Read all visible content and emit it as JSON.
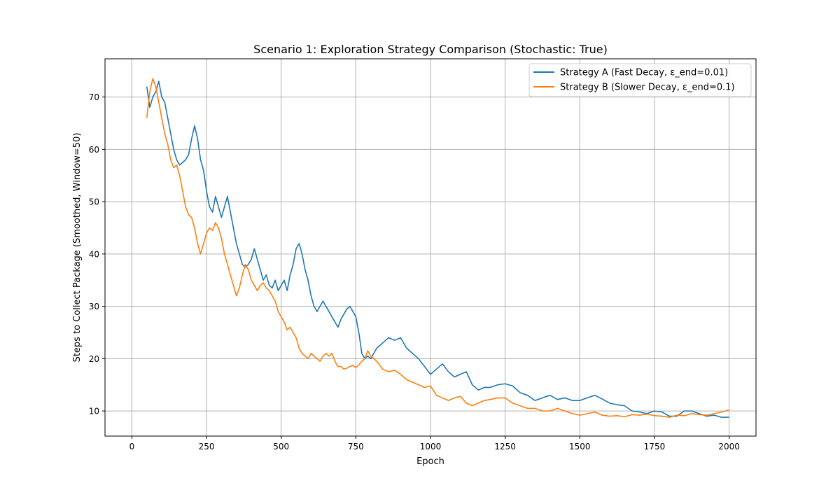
{
  "chart_data": {
    "type": "line",
    "title": "Scenario 1: Exploration Strategy Comparison (Stochastic: True)",
    "xlabel": "Epoch",
    "ylabel": "Steps to Collect Package (Smoothed, Window=50)",
    "xlim": [
      -90,
      2090
    ],
    "ylim": [
      5.2,
      77.3
    ],
    "x_ticks": [
      0,
      250,
      500,
      750,
      1000,
      1250,
      1500,
      1750,
      2000
    ],
    "y_ticks": [
      10,
      20,
      30,
      40,
      50,
      60,
      70
    ],
    "grid": true,
    "legend_position": "top-right",
    "series": [
      {
        "name": "Strategy A (Fast Decay, ε_end=0.01)",
        "color": "#1f77b4",
        "x": [
          50,
          60,
          70,
          80,
          90,
          100,
          110,
          120,
          130,
          140,
          150,
          160,
          170,
          180,
          190,
          200,
          210,
          220,
          230,
          240,
          250,
          260,
          270,
          280,
          290,
          300,
          310,
          320,
          330,
          340,
          350,
          360,
          370,
          380,
          390,
          400,
          410,
          420,
          430,
          440,
          450,
          460,
          470,
          480,
          490,
          500,
          510,
          520,
          530,
          540,
          550,
          560,
          570,
          580,
          590,
          600,
          610,
          620,
          630,
          640,
          650,
          660,
          670,
          680,
          690,
          700,
          710,
          720,
          730,
          740,
          750,
          760,
          770,
          780,
          790,
          800,
          820,
          840,
          860,
          880,
          900,
          920,
          940,
          960,
          980,
          1000,
          1020,
          1040,
          1060,
          1080,
          1100,
          1120,
          1140,
          1160,
          1180,
          1200,
          1225,
          1250,
          1275,
          1300,
          1325,
          1350,
          1375,
          1400,
          1425,
          1450,
          1475,
          1500,
          1525,
          1550,
          1575,
          1600,
          1625,
          1650,
          1675,
          1700,
          1725,
          1750,
          1775,
          1800,
          1825,
          1850,
          1875,
          1900,
          1925,
          1950,
          1975,
          2000
        ],
        "y": [
          72,
          68,
          70,
          71,
          73,
          70,
          69,
          66,
          63,
          60,
          58,
          57,
          57.5,
          58,
          59,
          62,
          64.5,
          62,
          58,
          56,
          52,
          49,
          48,
          51,
          49,
          47,
          49,
          51,
          48,
          45,
          42,
          40,
          38,
          37.5,
          38,
          39,
          41,
          39,
          37,
          35,
          36,
          34,
          33.5,
          35,
          33,
          34,
          35,
          33,
          36,
          38,
          41,
          42,
          40,
          37,
          35,
          32,
          30,
          29,
          30,
          31,
          30,
          29,
          28,
          27,
          26,
          27.5,
          28.5,
          29.5,
          30,
          29,
          28,
          25,
          21,
          20,
          20.5,
          20,
          22,
          23,
          24,
          23.5,
          24,
          22,
          21,
          20,
          18.5,
          17,
          18,
          19,
          17.5,
          16.5,
          17,
          17.5,
          15,
          14,
          14.5,
          14.5,
          15,
          15.2,
          14.8,
          13.5,
          13,
          12,
          12.5,
          13,
          12.2,
          12.5,
          12,
          12,
          12.5,
          13,
          12.3,
          11.5,
          11.2,
          11,
          10,
          9.8,
          9.5,
          10,
          9.8,
          9,
          9,
          10,
          10,
          9.5,
          9,
          9.2,
          8.8,
          8.8
        ]
      },
      {
        "name": "Strategy B (Slower Decay, ε_end=0.1)",
        "color": "#ff7f0e",
        "x": [
          50,
          60,
          70,
          80,
          90,
          100,
          110,
          120,
          130,
          140,
          150,
          160,
          170,
          180,
          190,
          200,
          210,
          220,
          230,
          240,
          250,
          260,
          270,
          280,
          290,
          300,
          310,
          320,
          330,
          340,
          350,
          360,
          370,
          380,
          390,
          400,
          410,
          420,
          430,
          440,
          450,
          460,
          470,
          480,
          490,
          500,
          510,
          520,
          530,
          540,
          550,
          560,
          570,
          580,
          590,
          600,
          610,
          620,
          630,
          640,
          650,
          660,
          670,
          680,
          690,
          700,
          710,
          720,
          730,
          740,
          750,
          760,
          770,
          780,
          790,
          800,
          820,
          840,
          860,
          880,
          900,
          920,
          940,
          960,
          980,
          1000,
          1020,
          1040,
          1060,
          1080,
          1100,
          1120,
          1140,
          1160,
          1180,
          1200,
          1225,
          1250,
          1275,
          1300,
          1325,
          1350,
          1375,
          1400,
          1425,
          1450,
          1475,
          1500,
          1525,
          1550,
          1575,
          1600,
          1625,
          1650,
          1675,
          1700,
          1725,
          1750,
          1775,
          1800,
          1825,
          1850,
          1875,
          1900,
          1925,
          1950,
          1975,
          2000
        ],
        "y": [
          66,
          71,
          73.5,
          72,
          69,
          66,
          63,
          61,
          58,
          56.5,
          57,
          55,
          52,
          49,
          47.5,
          47,
          45,
          42,
          40,
          42,
          44,
          45,
          44.5,
          46,
          45,
          43,
          40,
          38,
          36,
          34,
          32,
          33.5,
          36,
          38,
          37,
          35,
          34,
          33,
          34,
          34.5,
          33.5,
          33,
          32,
          31,
          29,
          28,
          27,
          25.5,
          26,
          25,
          24,
          22,
          21,
          20.5,
          20,
          21,
          20.5,
          20,
          19.5,
          20.5,
          21,
          20.5,
          21,
          19.5,
          18.5,
          18.5,
          18,
          18.2,
          18.5,
          18.7,
          18.3,
          18.8,
          19.5,
          20,
          21.5,
          20.5,
          19.5,
          18,
          17.5,
          17.8,
          17,
          16,
          15.5,
          15,
          14.5,
          14.8,
          13,
          12.5,
          12,
          12.5,
          12.8,
          11.5,
          11,
          11.5,
          12,
          12.2,
          12.5,
          12.5,
          11.5,
          11,
          10.5,
          10.5,
          10,
          10,
          10.5,
          10,
          9.5,
          9.2,
          9.5,
          9.8,
          9.2,
          9,
          9.1,
          8.9,
          9.3,
          9.2,
          9.4,
          9.1,
          9,
          8.8,
          9.2,
          9.1,
          9.5,
          9.3,
          9.2,
          9.5,
          9.8,
          10.2
        ]
      }
    ]
  }
}
